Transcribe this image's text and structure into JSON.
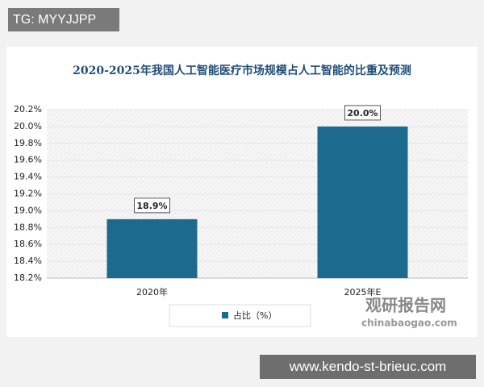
{
  "overlay": {
    "tag": "TG: MYYJJPP",
    "url": "www.kendo-st-brieuc.com"
  },
  "watermark": {
    "brand": "观研报告网",
    "site": "chinabaogao.com"
  },
  "chart_data": {
    "type": "bar",
    "title": "2020-2025年我国人工智能医疗市场规模占人工智能的比重及预测",
    "categories": [
      "2020年",
      "2025年E"
    ],
    "series": [
      {
        "name": "占比（%）",
        "color": "#1c6a8e",
        "values": [
          18.9,
          20.0
        ],
        "value_labels": [
          "18.9%",
          "20.0%"
        ]
      }
    ],
    "ylim": [
      18.2,
      20.2
    ],
    "yticks": [
      {
        "value": 18.2,
        "label": "18.2%"
      },
      {
        "value": 18.4,
        "label": "18.4%"
      },
      {
        "value": 18.6,
        "label": "18.6%"
      },
      {
        "value": 18.8,
        "label": "18.8%"
      },
      {
        "value": 19.0,
        "label": "19.0%"
      },
      {
        "value": 19.2,
        "label": "19.2%"
      },
      {
        "value": 19.4,
        "label": "19.4%"
      },
      {
        "value": 19.6,
        "label": "19.6%"
      },
      {
        "value": 19.8,
        "label": "19.8%"
      },
      {
        "value": 20.0,
        "label": "20.0%"
      },
      {
        "value": 20.2,
        "label": "20.2%"
      }
    ],
    "grid": true,
    "legend": "bottom"
  }
}
